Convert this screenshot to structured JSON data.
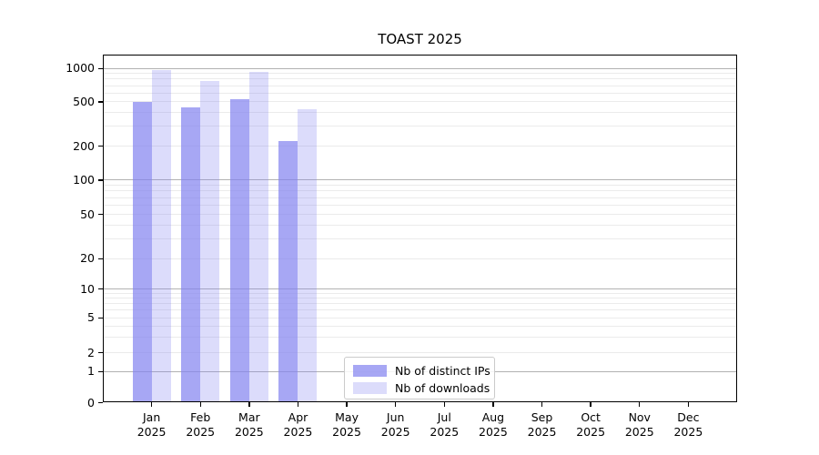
{
  "chart_data": {
    "type": "bar",
    "title": "TOAST 2025",
    "x_categories": [
      "Jan",
      "Feb",
      "Mar",
      "Apr",
      "May",
      "Jun",
      "Jul",
      "Aug",
      "Sep",
      "Oct",
      "Nov",
      "Dec"
    ],
    "x_year": "2025",
    "series": [
      {
        "name": "Nb of distinct IPs",
        "color": "rgba(130,130,240,0.70)",
        "values": [
          495,
          437,
          520,
          218,
          null,
          null,
          null,
          null,
          null,
          null,
          null,
          null
        ]
      },
      {
        "name": "Nb of downloads",
        "color": "rgba(130,130,240,0.28)",
        "values": [
          950,
          757,
          930,
          424,
          null,
          null,
          null,
          null,
          null,
          null,
          null,
          null
        ]
      }
    ],
    "y_ticks": [
      0,
      1,
      2,
      5,
      10,
      20,
      50,
      100,
      200,
      500,
      1000
    ],
    "y_scale": "symlog",
    "ylim": [
      0,
      1320
    ],
    "grid": "horizontal major+minor",
    "legend_position": "lower center inside",
    "colors": {
      "grid_major": "#b2b2b2",
      "grid_minor": "#ebebeb",
      "axis": "#000000"
    }
  }
}
